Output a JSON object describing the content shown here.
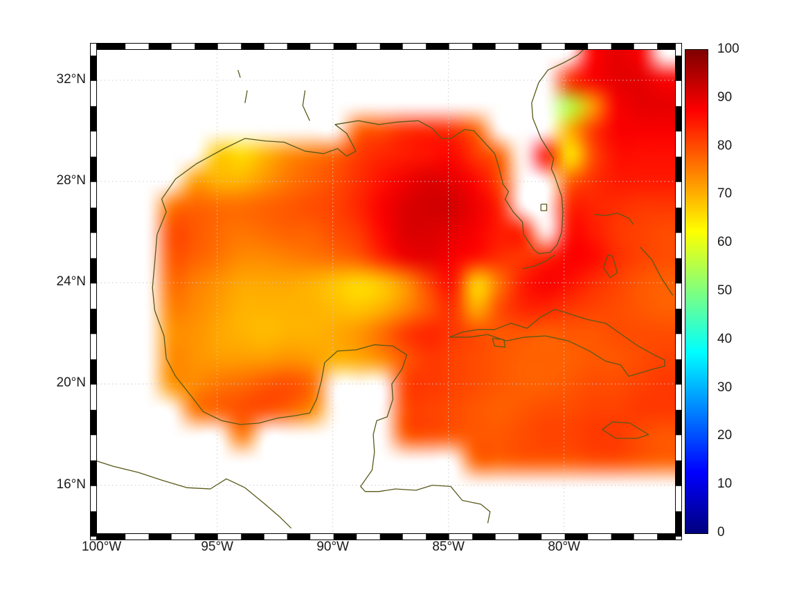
{
  "figure": {
    "background": "#ffffff"
  },
  "axes": {
    "x_ticks": [
      {
        "value": -100,
        "label": "100°W"
      },
      {
        "value": -95,
        "label": "95°W"
      },
      {
        "value": -90,
        "label": "90°W"
      },
      {
        "value": -85,
        "label": "85°W"
      },
      {
        "value": -80,
        "label": "80°W"
      }
    ],
    "y_ticks": [
      {
        "value": 32,
        "label": "32°N"
      },
      {
        "value": 28,
        "label": "28°N"
      },
      {
        "value": 24,
        "label": "24°N"
      },
      {
        "value": 20,
        "label": "20°N"
      },
      {
        "value": 16,
        "label": "16°N"
      }
    ],
    "gridline_lons": [
      -95,
      -90,
      -85,
      -80
    ],
    "gridline_lats": [
      32,
      28,
      24,
      20,
      16
    ],
    "gridline_color": "#cccccc",
    "frame_style": "alternating-black-white",
    "text_color": "#1a1a1a"
  },
  "colorbar": {
    "min": 0,
    "max": 100,
    "colormap": "jet",
    "tick_values": [
      100,
      90,
      80,
      70,
      60,
      50,
      40,
      30,
      20,
      10,
      0
    ],
    "tick_labels": [
      "100",
      "90",
      "80",
      "70",
      "60",
      "50",
      "40",
      "30",
      "20",
      "10",
      "0"
    ]
  },
  "chart_data": {
    "type": "heatmap",
    "title": "",
    "xlabel": "",
    "ylabel": "",
    "lon_range": [
      -100.2,
      -75.2
    ],
    "lat_range": [
      14.1,
      33.2
    ],
    "clim": [
      0,
      100
    ],
    "colormap": "jet",
    "no_data_color": "#ffffff",
    "grid_lon": [
      -100,
      -99,
      -98,
      -97,
      -96,
      -95,
      -94,
      -93,
      -92,
      -91,
      -90,
      -89,
      -88,
      -87,
      -86,
      -85,
      -84,
      -83,
      -82,
      -81,
      -80,
      -79,
      -78,
      -77,
      -76
    ],
    "grid_lat": [
      33,
      32,
      31,
      30,
      29,
      28,
      27,
      26,
      25,
      24,
      23,
      22,
      21,
      20,
      19,
      18,
      17,
      16,
      15
    ],
    "values": [
      [
        null,
        null,
        null,
        null,
        null,
        null,
        null,
        null,
        null,
        null,
        null,
        null,
        null,
        null,
        null,
        null,
        null,
        null,
        null,
        null,
        null,
        87,
        90,
        88,
        null
      ],
      [
        null,
        null,
        null,
        null,
        null,
        null,
        null,
        null,
        null,
        null,
        null,
        null,
        null,
        null,
        null,
        null,
        null,
        null,
        null,
        null,
        83,
        88,
        90,
        90,
        88
      ],
      [
        null,
        null,
        null,
        null,
        null,
        null,
        null,
        null,
        null,
        null,
        null,
        null,
        null,
        null,
        null,
        null,
        null,
        null,
        null,
        null,
        55,
        72,
        88,
        90,
        90
      ],
      [
        null,
        null,
        null,
        null,
        null,
        null,
        null,
        null,
        null,
        null,
        null,
        78,
        80,
        83,
        84,
        83,
        78,
        null,
        null,
        null,
        70,
        82,
        88,
        88,
        88
      ],
      [
        null,
        null,
        null,
        null,
        null,
        68,
        66,
        70,
        74,
        76,
        78,
        82,
        84,
        85,
        86,
        87,
        82,
        78,
        null,
        86,
        64,
        80,
        86,
        86,
        86
      ],
      [
        null,
        null,
        null,
        null,
        72,
        70,
        70,
        73,
        76,
        78,
        80,
        83,
        86,
        89,
        91,
        90,
        87,
        80,
        null,
        null,
        78,
        83,
        85,
        85,
        85
      ],
      [
        null,
        null,
        null,
        76,
        78,
        77,
        77,
        78,
        79,
        80,
        81,
        84,
        88,
        91,
        92,
        92,
        89,
        84,
        null,
        null,
        84,
        84,
        83,
        82,
        82
      ],
      [
        null,
        null,
        null,
        80,
        79,
        77,
        76,
        77,
        78,
        78,
        80,
        82,
        87,
        91,
        91,
        90,
        88,
        85,
        84,
        null,
        86,
        85,
        82,
        81,
        80
      ],
      [
        null,
        null,
        null,
        79,
        78,
        76,
        74,
        74,
        75,
        76,
        77,
        79,
        84,
        89,
        90,
        88,
        86,
        83,
        82,
        84,
        88,
        87,
        83,
        81,
        80
      ],
      [
        null,
        null,
        null,
        77,
        75,
        73,
        71,
        71,
        71,
        70,
        68,
        66,
        68,
        73,
        81,
        86,
        66,
        76,
        85,
        88,
        86,
        83,
        81,
        79,
        78
      ],
      [
        null,
        null,
        null,
        75,
        74,
        72,
        70,
        70,
        70,
        70,
        69,
        68,
        70,
        74,
        79,
        83,
        70,
        80,
        84,
        84,
        82,
        81,
        80,
        79,
        78
      ],
      [
        null,
        null,
        null,
        73,
        73,
        71,
        70,
        69,
        70,
        70,
        71,
        73,
        77,
        82,
        84,
        82,
        80,
        79,
        79,
        78,
        79,
        79,
        80,
        80,
        80
      ],
      [
        null,
        null,
        null,
        74,
        73,
        72,
        72,
        72,
        73,
        72,
        70,
        71,
        74,
        79,
        82,
        81,
        80,
        79,
        78,
        78,
        78,
        79,
        79,
        80,
        81
      ],
      [
        null,
        null,
        null,
        73,
        74,
        76,
        77,
        79,
        80,
        77,
        null,
        null,
        null,
        81,
        82,
        81,
        80,
        79,
        78,
        78,
        79,
        80,
        80,
        81,
        82
      ],
      [
        null,
        null,
        null,
        null,
        76,
        78,
        80,
        80,
        78,
        74,
        null,
        null,
        null,
        80,
        81,
        80,
        79,
        78,
        79,
        80,
        80,
        81,
        81,
        82,
        82
      ],
      [
        null,
        null,
        null,
        null,
        null,
        null,
        76,
        null,
        null,
        null,
        null,
        null,
        null,
        79,
        80,
        79,
        79,
        79,
        80,
        81,
        81,
        82,
        82,
        80,
        79
      ],
      [
        null,
        null,
        null,
        null,
        null,
        null,
        null,
        null,
        null,
        null,
        null,
        null,
        null,
        null,
        null,
        null,
        78,
        78,
        79,
        79,
        79,
        80,
        80,
        79,
        78
      ],
      [
        null,
        null,
        null,
        null,
        null,
        null,
        null,
        null,
        null,
        null,
        null,
        null,
        null,
        null,
        null,
        null,
        null,
        null,
        null,
        null,
        null,
        null,
        null,
        null,
        null
      ],
      [
        null,
        null,
        null,
        null,
        null,
        null,
        null,
        null,
        null,
        null,
        null,
        null,
        null,
        null,
        null,
        null,
        null,
        null,
        null,
        null,
        null,
        null,
        null,
        null,
        null
      ]
    ]
  },
  "coastlines": {
    "color": "#58581a",
    "paths": [
      [
        [
          -97.6,
          25.9
        ],
        [
          -97.2,
          26.8
        ],
        [
          -97.4,
          27.3
        ],
        [
          -96.8,
          28.1
        ],
        [
          -95.9,
          28.7
        ],
        [
          -94.7,
          29.3
        ],
        [
          -93.8,
          29.7
        ],
        [
          -92.9,
          29.6
        ],
        [
          -92.1,
          29.55
        ],
        [
          -91.2,
          29.2
        ],
        [
          -90.4,
          29.1
        ],
        [
          -89.8,
          29.3
        ],
        [
          -89.4,
          29.0
        ],
        [
          -89.0,
          29.2
        ],
        [
          -89.4,
          29.9
        ],
        [
          -89.9,
          30.25
        ],
        [
          -88.9,
          30.4
        ],
        [
          -88.0,
          30.25
        ],
        [
          -87.2,
          30.35
        ],
        [
          -86.3,
          30.4
        ],
        [
          -85.7,
          30.1
        ],
        [
          -85.3,
          29.7
        ],
        [
          -84.9,
          29.7
        ],
        [
          -84.3,
          30.05
        ],
        [
          -83.9,
          30.0
        ],
        [
          -83.4,
          29.5
        ],
        [
          -83.0,
          29.1
        ],
        [
          -82.8,
          28.5
        ],
        [
          -82.65,
          27.9
        ],
        [
          -82.4,
          27.6
        ],
        [
          -82.55,
          27.3
        ],
        [
          -82.2,
          26.8
        ],
        [
          -81.8,
          26.4
        ],
        [
          -81.75,
          25.9
        ],
        [
          -81.3,
          25.3
        ],
        [
          -81.1,
          25.15
        ],
        [
          -80.6,
          25.2
        ],
        [
          -80.3,
          25.5
        ],
        [
          -80.1,
          26.0
        ],
        [
          -80.05,
          26.8
        ],
        [
          -80.1,
          27.4
        ],
        [
          -80.4,
          28.2
        ],
        [
          -80.55,
          28.5
        ],
        [
          -80.45,
          28.9
        ],
        [
          -81.0,
          29.7
        ],
        [
          -81.35,
          30.5
        ],
        [
          -81.4,
          31.1
        ],
        [
          -81.1,
          31.9
        ],
        [
          -80.7,
          32.4
        ],
        [
          -80.0,
          32.7
        ],
        [
          -79.4,
          33.0
        ],
        [
          -79.0,
          33.35
        ]
      ],
      [
        [
          -97.6,
          25.9
        ],
        [
          -97.7,
          24.8
        ],
        [
          -97.8,
          23.8
        ],
        [
          -97.7,
          22.9
        ],
        [
          -97.3,
          21.9
        ],
        [
          -97.2,
          21.0
        ],
        [
          -96.8,
          20.3
        ],
        [
          -96.1,
          19.5
        ],
        [
          -95.6,
          18.9
        ],
        [
          -94.8,
          18.55
        ],
        [
          -94.0,
          18.4
        ],
        [
          -93.2,
          18.45
        ],
        [
          -92.4,
          18.65
        ],
        [
          -91.6,
          18.75
        ],
        [
          -91.0,
          18.85
        ],
        [
          -90.7,
          19.4
        ],
        [
          -90.5,
          20.1
        ],
        [
          -90.35,
          20.85
        ],
        [
          -89.8,
          21.3
        ],
        [
          -89.0,
          21.35
        ],
        [
          -88.2,
          21.55
        ],
        [
          -87.4,
          21.5
        ],
        [
          -86.8,
          21.15
        ],
        [
          -87.0,
          20.6
        ],
        [
          -87.45,
          20.0
        ],
        [
          -87.4,
          19.4
        ],
        [
          -87.65,
          18.7
        ],
        [
          -88.1,
          18.55
        ],
        [
          -88.25,
          18.0
        ],
        [
          -88.2,
          17.3
        ],
        [
          -88.3,
          16.6
        ],
        [
          -88.8,
          15.95
        ],
        [
          -88.6,
          15.75
        ],
        [
          -88.0,
          15.75
        ],
        [
          -87.3,
          15.85
        ],
        [
          -86.4,
          15.8
        ],
        [
          -85.7,
          16.0
        ],
        [
          -84.9,
          15.95
        ],
        [
          -84.4,
          15.4
        ],
        [
          -83.6,
          15.25
        ],
        [
          -83.2,
          14.95
        ],
        [
          -83.3,
          14.5
        ]
      ],
      [
        [
          -100.2,
          16.95
        ],
        [
          -99.5,
          16.75
        ],
        [
          -98.4,
          16.5
        ],
        [
          -97.4,
          16.2
        ],
        [
          -96.3,
          15.9
        ],
        [
          -95.3,
          15.85
        ],
        [
          -94.6,
          16.25
        ],
        [
          -93.8,
          15.9
        ],
        [
          -93.0,
          15.3
        ],
        [
          -92.3,
          14.75
        ],
        [
          -91.8,
          14.3
        ]
      ],
      [
        [
          -84.95,
          21.85
        ],
        [
          -84.4,
          22.05
        ],
        [
          -83.7,
          22.15
        ],
        [
          -83.0,
          22.15
        ],
        [
          -82.3,
          22.4
        ],
        [
          -81.6,
          22.2
        ],
        [
          -81.0,
          22.65
        ],
        [
          -80.4,
          22.95
        ],
        [
          -79.7,
          22.75
        ],
        [
          -79.0,
          22.55
        ],
        [
          -78.2,
          22.4
        ],
        [
          -77.5,
          21.95
        ],
        [
          -76.8,
          21.5
        ],
        [
          -76.1,
          21.15
        ],
        [
          -75.65,
          20.95
        ],
        [
          -75.65,
          20.7
        ],
        [
          -76.3,
          20.55
        ],
        [
          -77.2,
          20.3
        ],
        [
          -77.55,
          20.75
        ],
        [
          -78.2,
          20.9
        ],
        [
          -78.9,
          21.3
        ],
        [
          -79.8,
          21.7
        ],
        [
          -80.8,
          21.9
        ],
        [
          -81.7,
          21.85
        ],
        [
          -82.5,
          21.7
        ],
        [
          -83.3,
          21.95
        ],
        [
          -84.1,
          21.85
        ],
        [
          -84.95,
          21.85
        ]
      ],
      [
        [
          -78.7,
          26.7
        ],
        [
          -78.2,
          26.65
        ],
        [
          -77.7,
          26.75
        ],
        [
          -77.2,
          26.55
        ],
        [
          -77.0,
          26.3
        ]
      ],
      [
        [
          -78.3,
          24.6
        ],
        [
          -78.1,
          25.1
        ],
        [
          -77.9,
          25.05
        ],
        [
          -77.7,
          24.4
        ],
        [
          -78.0,
          24.2
        ],
        [
          -78.3,
          24.6
        ]
      ],
      [
        [
          -76.7,
          25.4
        ],
        [
          -76.2,
          24.9
        ],
        [
          -75.8,
          24.2
        ],
        [
          -75.3,
          23.5
        ]
      ],
      [
        [
          -78.35,
          18.2
        ],
        [
          -77.9,
          18.5
        ],
        [
          -77.15,
          18.45
        ],
        [
          -76.35,
          18.0
        ],
        [
          -76.85,
          17.85
        ],
        [
          -77.75,
          17.85
        ],
        [
          -78.35,
          18.2
        ]
      ],
      [
        [
          -83.1,
          21.8
        ],
        [
          -82.6,
          21.75
        ],
        [
          -82.55,
          21.45
        ],
        [
          -83.0,
          21.5
        ],
        [
          -83.1,
          21.8
        ]
      ],
      [
        [
          -80.4,
          25.1
        ],
        [
          -80.8,
          24.85
        ],
        [
          -81.3,
          24.65
        ],
        [
          -81.8,
          24.55
        ]
      ],
      [
        [
          -81.0,
          27.1
        ],
        [
          -80.75,
          27.1
        ],
        [
          -80.75,
          26.85
        ],
        [
          -81.0,
          26.85
        ],
        [
          -81.0,
          27.1
        ]
      ],
      [
        [
          -91.2,
          31.6
        ],
        [
          -91.3,
          31.0
        ],
        [
          -91.0,
          30.4
        ]
      ],
      [
        [
          -93.7,
          31.6
        ],
        [
          -93.8,
          31.1
        ]
      ],
      [
        [
          -94.1,
          32.4
        ],
        [
          -94.0,
          32.1
        ]
      ]
    ]
  }
}
